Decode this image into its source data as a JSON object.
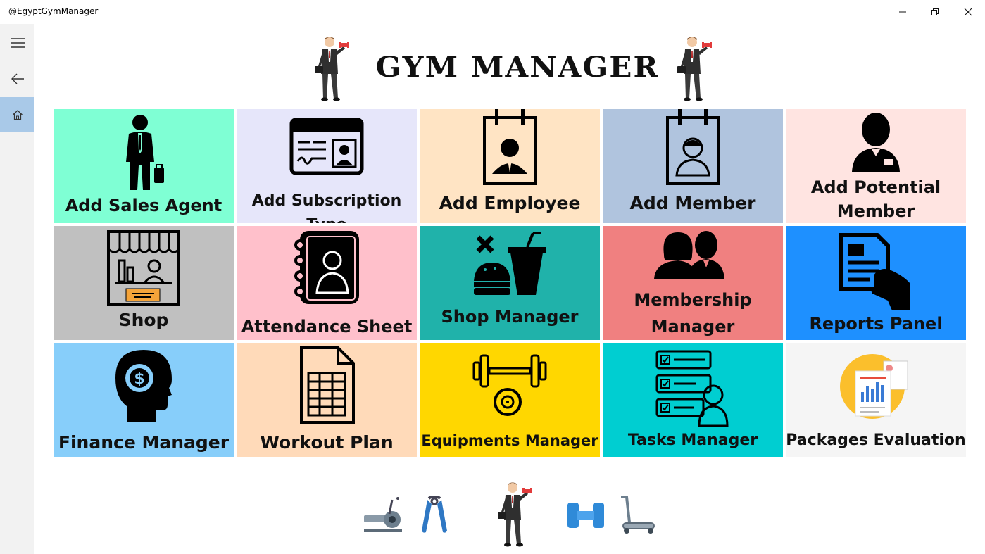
{
  "window": {
    "title": "@EgyptGymManager"
  },
  "header": {
    "title": "GYM MANAGER"
  },
  "colors": {
    "add_sales_agent": "#7fffd4",
    "add_subscription_type": "#e6e6fa",
    "add_employee": "#ffe4c4",
    "add_member": "#b0c4de",
    "add_potential_member": "#ffe4e1",
    "shop": "#c0c0c0",
    "attendance_sheet": "#ffc0cb",
    "shop_manager": "#20b2aa",
    "membership_manager": "#f08080",
    "reports_panel": "#1e90ff",
    "finance_manager": "#87cefa",
    "workout_plan": "#ffdab9",
    "equipments_manager": "#ffd700",
    "tasks_manager": "#00ced1",
    "packages_evaluation": "#f5f5f5"
  },
  "tiles": [
    {
      "label": "Add Sales Agent",
      "icon": "sales-agent-icon"
    },
    {
      "label": "Add Subscription Type",
      "icon": "id-card-icon"
    },
    {
      "label": "Add Employee",
      "icon": "employee-badge-icon"
    },
    {
      "label": "Add Member",
      "icon": "member-badge-icon"
    },
    {
      "label": "Add Potential Member",
      "icon": "potential-member-icon"
    },
    {
      "label": "Shop",
      "icon": "storefront-icon"
    },
    {
      "label": "Attendance Sheet",
      "icon": "contact-book-icon"
    },
    {
      "label": "Shop Manager",
      "icon": "food-drink-icon"
    },
    {
      "label": "Membership Manager",
      "icon": "couple-icon"
    },
    {
      "label": "Reports Panel",
      "icon": "report-hand-icon"
    },
    {
      "label": "Finance Manager",
      "icon": "money-head-icon"
    },
    {
      "label": "Workout Plan",
      "icon": "spreadsheet-icon"
    },
    {
      "label": "Equipments Manager",
      "icon": "barbell-icon"
    },
    {
      "label": "Tasks Manager",
      "icon": "task-list-icon"
    },
    {
      "label": "Packages Evaluation",
      "icon": "chart-report-icon"
    }
  ]
}
